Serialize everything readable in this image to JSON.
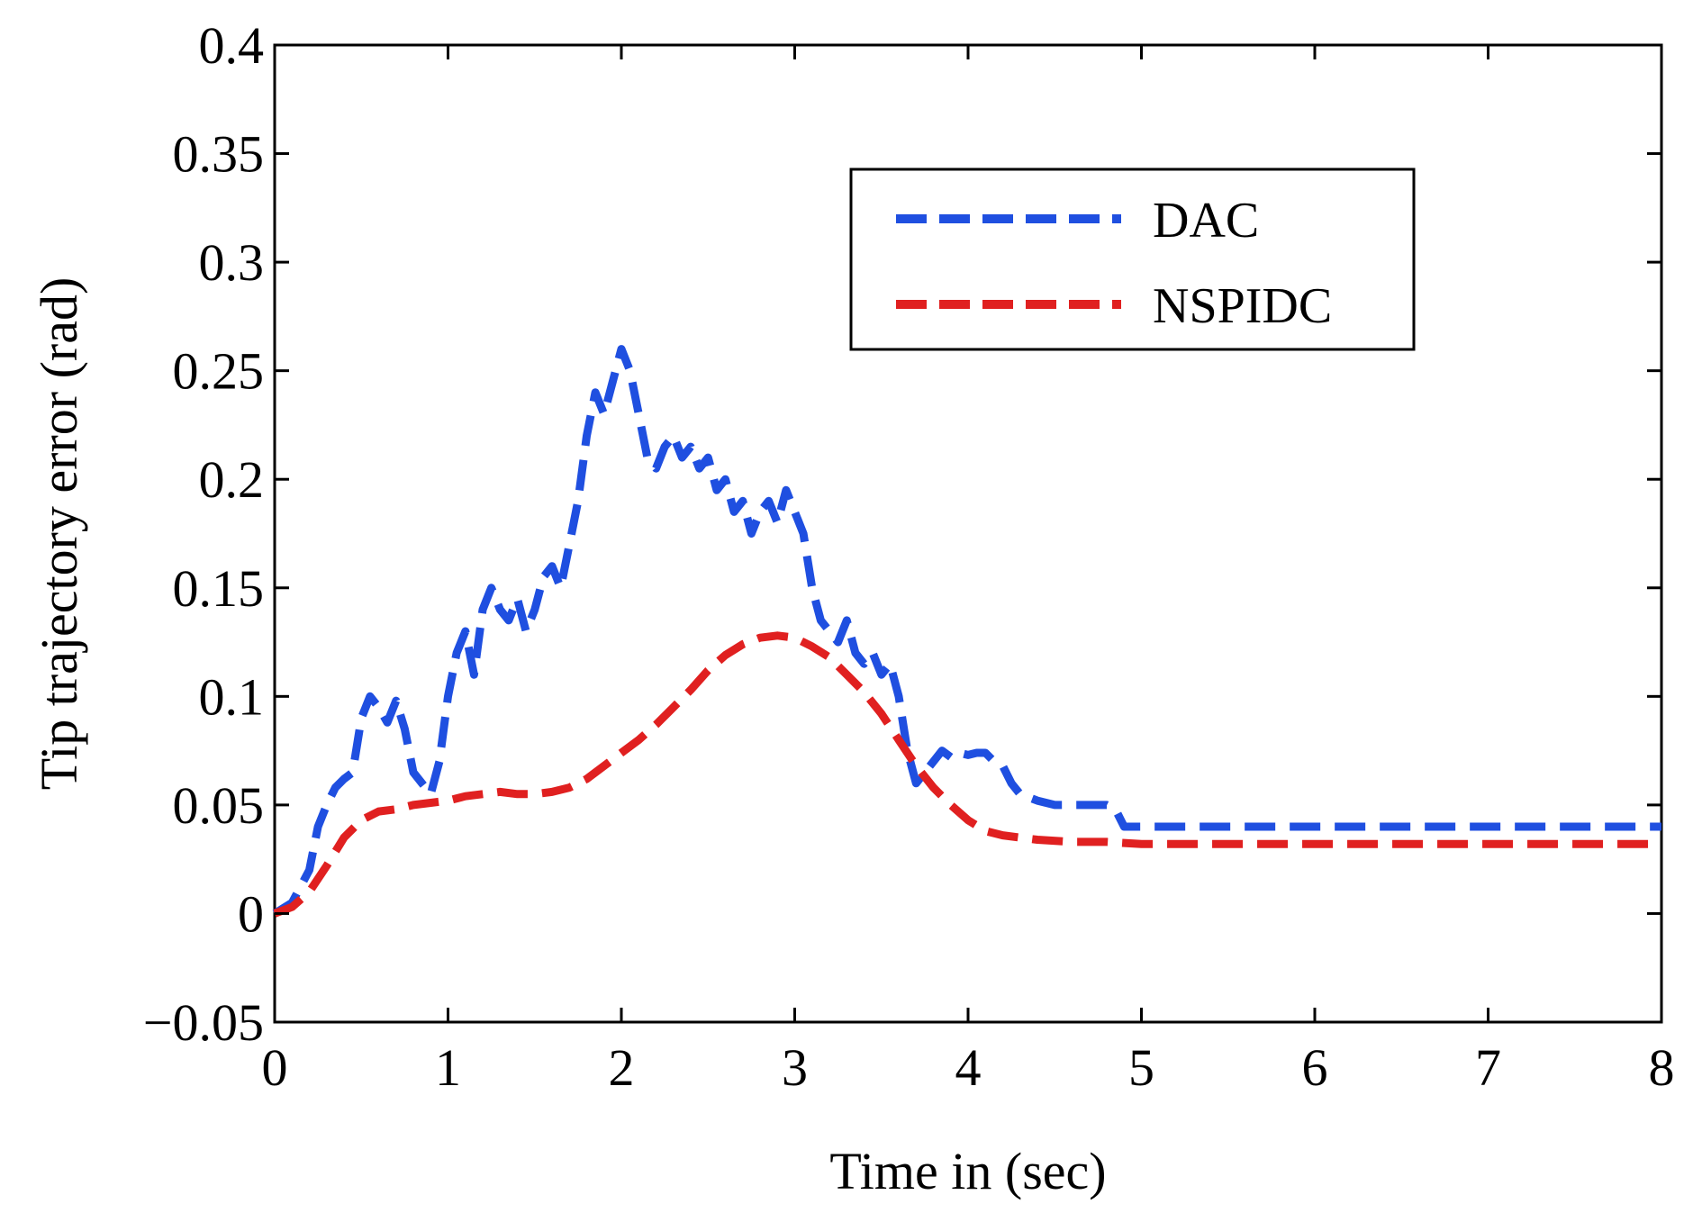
{
  "chart_data": {
    "type": "line",
    "title": "",
    "xlabel": "Time in (sec)",
    "ylabel": "Tip trajectory error (rad)",
    "xlim": [
      0,
      8
    ],
    "ylim": [
      -0.05,
      0.4
    ],
    "xticks": [
      0,
      1,
      2,
      3,
      4,
      5,
      6,
      7,
      8
    ],
    "xtick_labels": [
      "0",
      "1",
      "2",
      "3",
      "4",
      "5",
      "6",
      "7",
      "8"
    ],
    "yticks": [
      -0.05,
      0,
      0.05,
      0.1,
      0.15,
      0.2,
      0.25,
      0.3,
      0.35,
      0.4
    ],
    "ytick_labels": [
      "−0.05",
      "0",
      "0.05",
      "0.1",
      "0.15",
      "0.2",
      "0.25",
      "0.3",
      "0.35",
      "0.4"
    ],
    "grid": false,
    "legend_position": "top-right",
    "series": [
      {
        "name": "DAC",
        "color": "#1f4fe0",
        "style": "dashed",
        "x": [
          0,
          0.1,
          0.2,
          0.25,
          0.3,
          0.35,
          0.4,
          0.45,
          0.5,
          0.55,
          0.6,
          0.65,
          0.7,
          0.75,
          0.8,
          0.85,
          0.9,
          0.95,
          1.0,
          1.05,
          1.1,
          1.15,
          1.2,
          1.25,
          1.3,
          1.35,
          1.4,
          1.45,
          1.5,
          1.55,
          1.6,
          1.65,
          1.7,
          1.75,
          1.8,
          1.85,
          1.9,
          1.95,
          2.0,
          2.05,
          2.1,
          2.15,
          2.2,
          2.25,
          2.3,
          2.35,
          2.4,
          2.45,
          2.5,
          2.55,
          2.6,
          2.65,
          2.7,
          2.75,
          2.8,
          2.85,
          2.9,
          2.95,
          3.0,
          3.05,
          3.1,
          3.15,
          3.2,
          3.25,
          3.3,
          3.35,
          3.4,
          3.45,
          3.5,
          3.55,
          3.6,
          3.65,
          3.7,
          3.75,
          3.8,
          3.85,
          3.9,
          3.95,
          4.0,
          4.05,
          4.1,
          4.15,
          4.2,
          4.25,
          4.3,
          4.4,
          4.5,
          4.6,
          4.7,
          4.8,
          4.85,
          4.9,
          4.95,
          5.0,
          6.0,
          7.0,
          8.0
        ],
        "y": [
          0.0,
          0.005,
          0.02,
          0.04,
          0.05,
          0.058,
          0.062,
          0.065,
          0.09,
          0.1,
          0.095,
          0.088,
          0.098,
          0.085,
          0.065,
          0.06,
          0.055,
          0.07,
          0.1,
          0.12,
          0.13,
          0.11,
          0.14,
          0.15,
          0.14,
          0.135,
          0.145,
          0.13,
          0.14,
          0.155,
          0.16,
          0.15,
          0.17,
          0.19,
          0.22,
          0.24,
          0.23,
          0.245,
          0.26,
          0.25,
          0.23,
          0.21,
          0.205,
          0.215,
          0.22,
          0.21,
          0.215,
          0.205,
          0.21,
          0.195,
          0.2,
          0.185,
          0.19,
          0.175,
          0.185,
          0.19,
          0.18,
          0.195,
          0.185,
          0.175,
          0.15,
          0.135,
          0.13,
          0.125,
          0.135,
          0.12,
          0.115,
          0.12,
          0.11,
          0.115,
          0.1,
          0.075,
          0.06,
          0.065,
          0.07,
          0.075,
          0.072,
          0.074,
          0.073,
          0.074,
          0.074,
          0.07,
          0.068,
          0.06,
          0.055,
          0.052,
          0.05,
          0.05,
          0.05,
          0.05,
          0.048,
          0.04,
          0.04,
          0.04,
          0.04,
          0.04,
          0.04
        ]
      },
      {
        "name": "NSPIDC",
        "color": "#e02020",
        "style": "dashed",
        "x": [
          0,
          0.1,
          0.2,
          0.3,
          0.4,
          0.5,
          0.6,
          0.7,
          0.8,
          0.9,
          1.0,
          1.1,
          1.2,
          1.3,
          1.4,
          1.5,
          1.6,
          1.7,
          1.8,
          1.9,
          2.0,
          2.1,
          2.2,
          2.3,
          2.4,
          2.5,
          2.6,
          2.7,
          2.8,
          2.9,
          3.0,
          3.1,
          3.2,
          3.3,
          3.4,
          3.5,
          3.6,
          3.7,
          3.8,
          3.9,
          4.0,
          4.1,
          4.2,
          4.3,
          4.4,
          4.6,
          4.8,
          5.0,
          6.0,
          7.0,
          8.0
        ],
        "y": [
          0.0,
          0.003,
          0.01,
          0.022,
          0.035,
          0.043,
          0.047,
          0.048,
          0.05,
          0.051,
          0.052,
          0.054,
          0.055,
          0.056,
          0.055,
          0.055,
          0.056,
          0.058,
          0.062,
          0.068,
          0.074,
          0.08,
          0.087,
          0.095,
          0.103,
          0.112,
          0.119,
          0.124,
          0.127,
          0.128,
          0.127,
          0.123,
          0.118,
          0.11,
          0.102,
          0.092,
          0.08,
          0.068,
          0.058,
          0.05,
          0.043,
          0.038,
          0.036,
          0.035,
          0.034,
          0.033,
          0.033,
          0.032,
          0.032,
          0.032,
          0.032
        ]
      }
    ]
  }
}
